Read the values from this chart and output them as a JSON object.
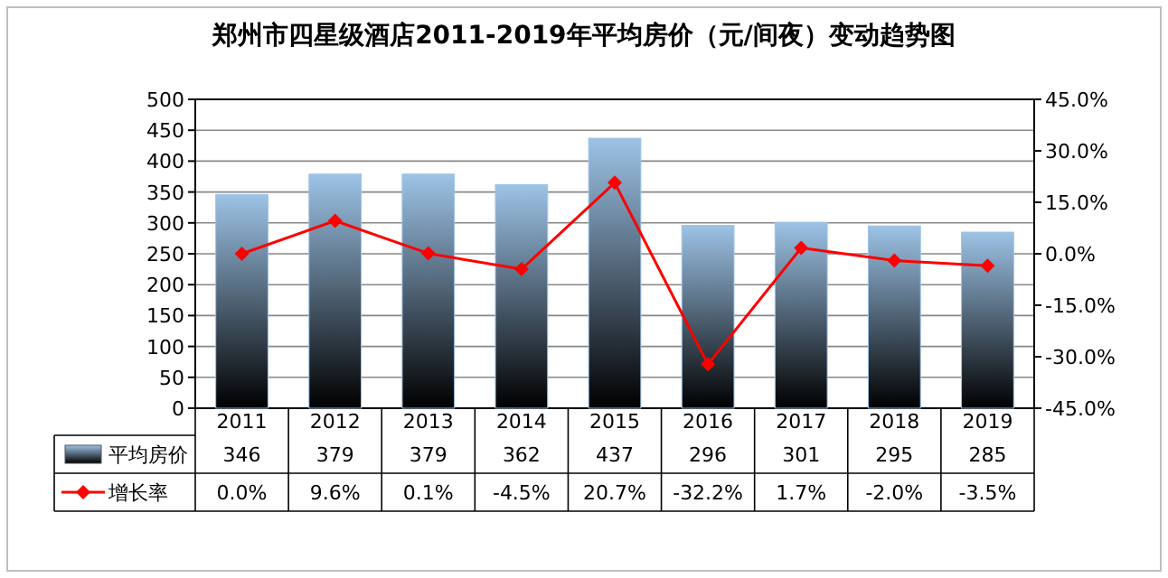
{
  "chart_data": {
    "type": "bar",
    "title": "郑州市四星级酒店2011-2019年平均房价（元/间夜）变动趋势图",
    "categories": [
      "2011",
      "2012",
      "2013",
      "2014",
      "2015",
      "2016",
      "2017",
      "2018",
      "2019"
    ],
    "series": [
      {
        "name": "平均房价",
        "color": "#9dc3e6",
        "values": [
          346,
          379,
          379,
          362,
          437,
          296,
          301,
          295,
          285
        ],
        "value_labels": [
          "346",
          "379",
          "379",
          "362",
          "437",
          "296",
          "301",
          "295",
          "285"
        ]
      },
      {
        "name": "增长率",
        "type": "line",
        "axis": "y2",
        "color": "#ff0000",
        "marker": "diamond",
        "values": [
          0.0,
          9.6,
          0.1,
          -4.5,
          20.7,
          -32.2,
          1.7,
          -2.0,
          -3.5
        ],
        "value_labels": [
          "0.0%",
          "9.6%",
          "0.1%",
          "-4.5%",
          "20.7%",
          "-32.2%",
          "1.7%",
          "-2.0%",
          "-3.5%"
        ]
      }
    ],
    "ylim": [
      0,
      500
    ],
    "yticks": [
      0,
      50,
      100,
      150,
      200,
      250,
      300,
      350,
      400,
      450,
      500
    ],
    "y2lim": [
      -45,
      45
    ],
    "y2ticks": [
      {
        "value": 45,
        "label": "45.0%"
      },
      {
        "value": 30,
        "label": "30.0%"
      },
      {
        "value": 15,
        "label": "15.0%"
      },
      {
        "value": 0,
        "label": "0.0%"
      },
      {
        "value": -15,
        "label": "-15.0%"
      },
      {
        "value": -30,
        "label": "-30.0%"
      },
      {
        "value": -45,
        "label": "-45.0%"
      }
    ],
    "grid": "y",
    "legend": "bottom"
  }
}
